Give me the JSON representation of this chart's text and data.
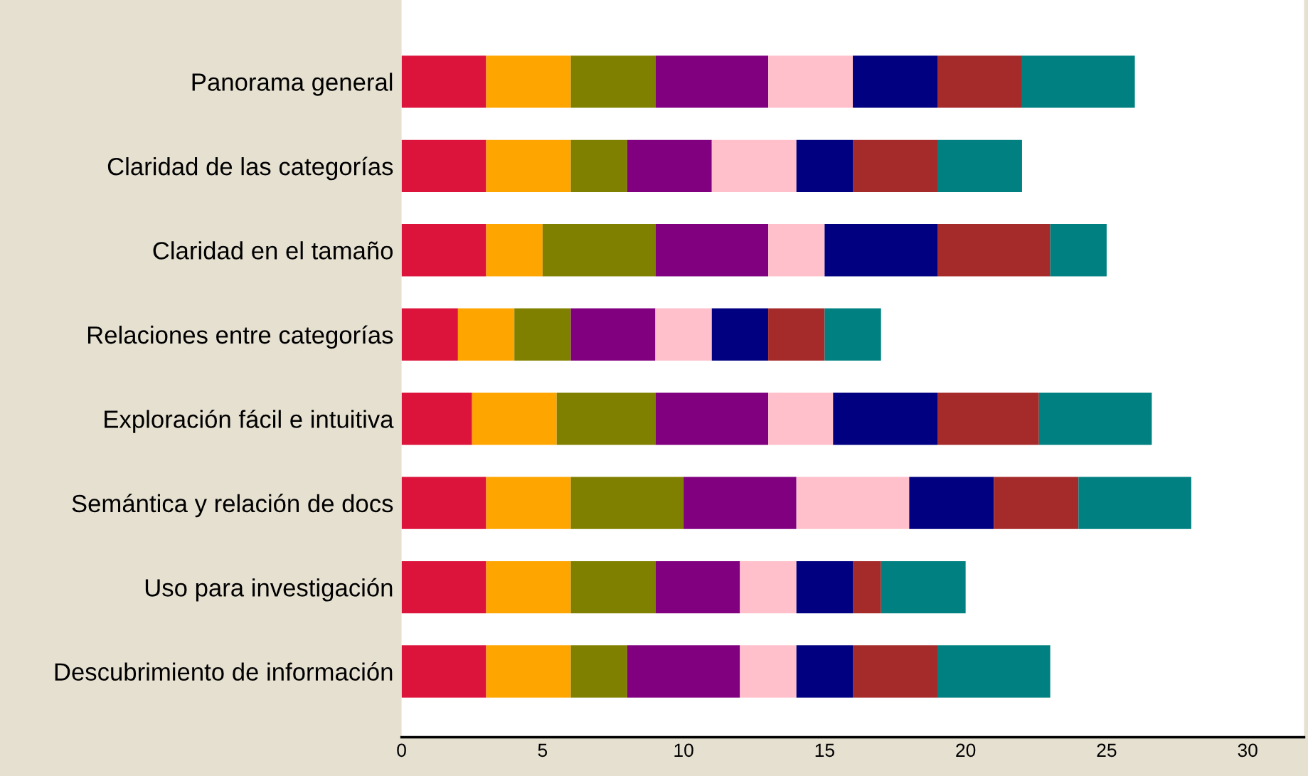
{
  "chart_data": {
    "type": "bar",
    "orientation": "horizontal",
    "stacked": true,
    "categories": [
      "Panorama general",
      "Claridad de las categorías",
      "Claridad en el tamaño",
      "Relaciones entre categorías",
      "Exploración fácil e intuitiva",
      "Semántica y relación de docs",
      "Uso para investigación",
      "Descubrimiento de información"
    ],
    "series": [
      {
        "color": "#dc143c",
        "values": [
          3,
          3,
          3,
          2,
          2.5,
          3,
          3,
          3
        ]
      },
      {
        "color": "#ffa500",
        "values": [
          3,
          3,
          2,
          2,
          3,
          3,
          3,
          3
        ]
      },
      {
        "color": "#808000",
        "values": [
          3,
          2,
          4,
          2,
          3.5,
          4,
          3,
          2
        ]
      },
      {
        "color": "#800080",
        "values": [
          4,
          3,
          4,
          3,
          4,
          4,
          3,
          4
        ]
      },
      {
        "color": "#ffc0cb",
        "values": [
          3,
          3,
          2,
          2,
          2.3,
          4,
          2,
          2
        ]
      },
      {
        "color": "#000080",
        "values": [
          3,
          2,
          4,
          2,
          3.7,
          3,
          2,
          2
        ]
      },
      {
        "color": "#a52a2a",
        "values": [
          3,
          3,
          4,
          2,
          3.6,
          3,
          1,
          3
        ]
      },
      {
        "color": "#008080",
        "values": [
          4,
          3,
          2,
          2,
          4,
          4,
          3,
          4
        ]
      }
    ],
    "xlim": [
      0,
      32
    ],
    "xticks": [
      0,
      5,
      10,
      15,
      20,
      25,
      30
    ],
    "grid": false,
    "legend": false
  }
}
